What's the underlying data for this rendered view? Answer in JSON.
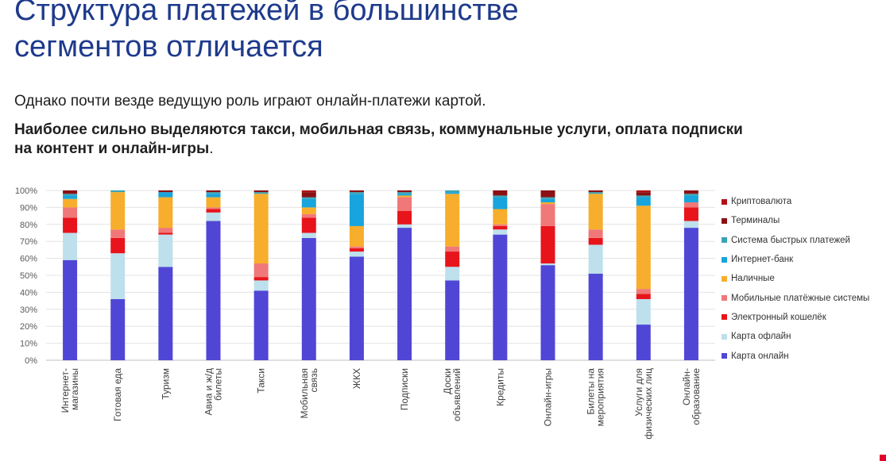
{
  "slide": {
    "title_line1": "Структура платежей в большинстве",
    "title_line2": "сегментов отличается",
    "subtitle": "Однако почти везде ведущую роль играют онлайн-платежи картой.",
    "highlight_line1": "Наиболее сильно выделяются такси, мобильная связь, коммунальные услуги, оплата подписки",
    "highlight_line2": "на контент и онлайн-игры",
    "highlight_suffix": "."
  },
  "chart_data": {
    "type": "bar",
    "stacked": true,
    "percent_stacked": true,
    "title": "",
    "xlabel": "",
    "ylabel": "",
    "ylim": [
      0,
      100
    ],
    "yticks": [
      "0%",
      "10%",
      "20%",
      "30%",
      "40%",
      "50%",
      "60%",
      "70%",
      "80%",
      "90%",
      "100%"
    ],
    "grid": true,
    "legend_position": "right",
    "categories": [
      [
        "Интернет-",
        "магазины"
      ],
      [
        "Готовая еда"
      ],
      [
        "Туризм"
      ],
      [
        "Авиа и ж/д",
        "билеты"
      ],
      [
        "Такси"
      ],
      [
        "Мобильная",
        "связь"
      ],
      [
        "ЖКХ"
      ],
      [
        "Подписки"
      ],
      [
        "Доски",
        "объявлений"
      ],
      [
        "Кредиты"
      ],
      [
        "Онлайн-игры"
      ],
      [
        "Билеты на",
        "мероприятия"
      ],
      [
        "Услуги для",
        "физических лиц"
      ],
      [
        "Онлайн-",
        "образование"
      ]
    ],
    "series": [
      {
        "name": "Карта онлайн",
        "color": "#5046d6",
        "values": [
          59,
          36,
          55,
          82,
          41,
          72,
          61,
          78,
          47,
          74,
          56,
          51,
          21,
          78
        ]
      },
      {
        "name": "Карта офлайн",
        "color": "#bde0ec",
        "values": [
          16,
          27,
          19,
          5,
          6,
          3,
          3,
          2,
          8,
          3,
          1,
          17,
          15,
          4
        ]
      },
      {
        "name": "Электронный кошелёк",
        "color": "#e8141b",
        "values": [
          9,
          9,
          1,
          2,
          2,
          9,
          2,
          8,
          9,
          2,
          22,
          4,
          3,
          8
        ]
      },
      {
        "name": "Мобильные платёжные системы",
        "color": "#f07878",
        "values": [
          6,
          5,
          3,
          1,
          8,
          2,
          1,
          8,
          3,
          1,
          13,
          5,
          3,
          3
        ]
      },
      {
        "name": "Наличные",
        "color": "#f7ae2c",
        "values": [
          5,
          22,
          18,
          6,
          41,
          4,
          12,
          1,
          31,
          9,
          1,
          21,
          49,
          0
        ]
      },
      {
        "name": "Интернет-банк",
        "color": "#18a4dc",
        "values": [
          2,
          0,
          3,
          2,
          0,
          5,
          19,
          1,
          1,
          7,
          2,
          0,
          5,
          4
        ]
      },
      {
        "name": "Система быстрых платежей",
        "color": "#3aa4b4",
        "values": [
          1,
          1,
          0,
          1,
          1,
          1,
          1,
          1,
          1,
          1,
          1,
          1,
          1,
          1
        ]
      },
      {
        "name": "Терминалы",
        "color": "#8b1014",
        "values": [
          2,
          0,
          1,
          1,
          1,
          3,
          1,
          1,
          0,
          3,
          4,
          1,
          2,
          2
        ]
      },
      {
        "name": "Криптовалюта",
        "color": "#b01218",
        "values": [
          0,
          0,
          0,
          0,
          0,
          1,
          0,
          0,
          0,
          0,
          0,
          0,
          1,
          0
        ]
      }
    ]
  }
}
